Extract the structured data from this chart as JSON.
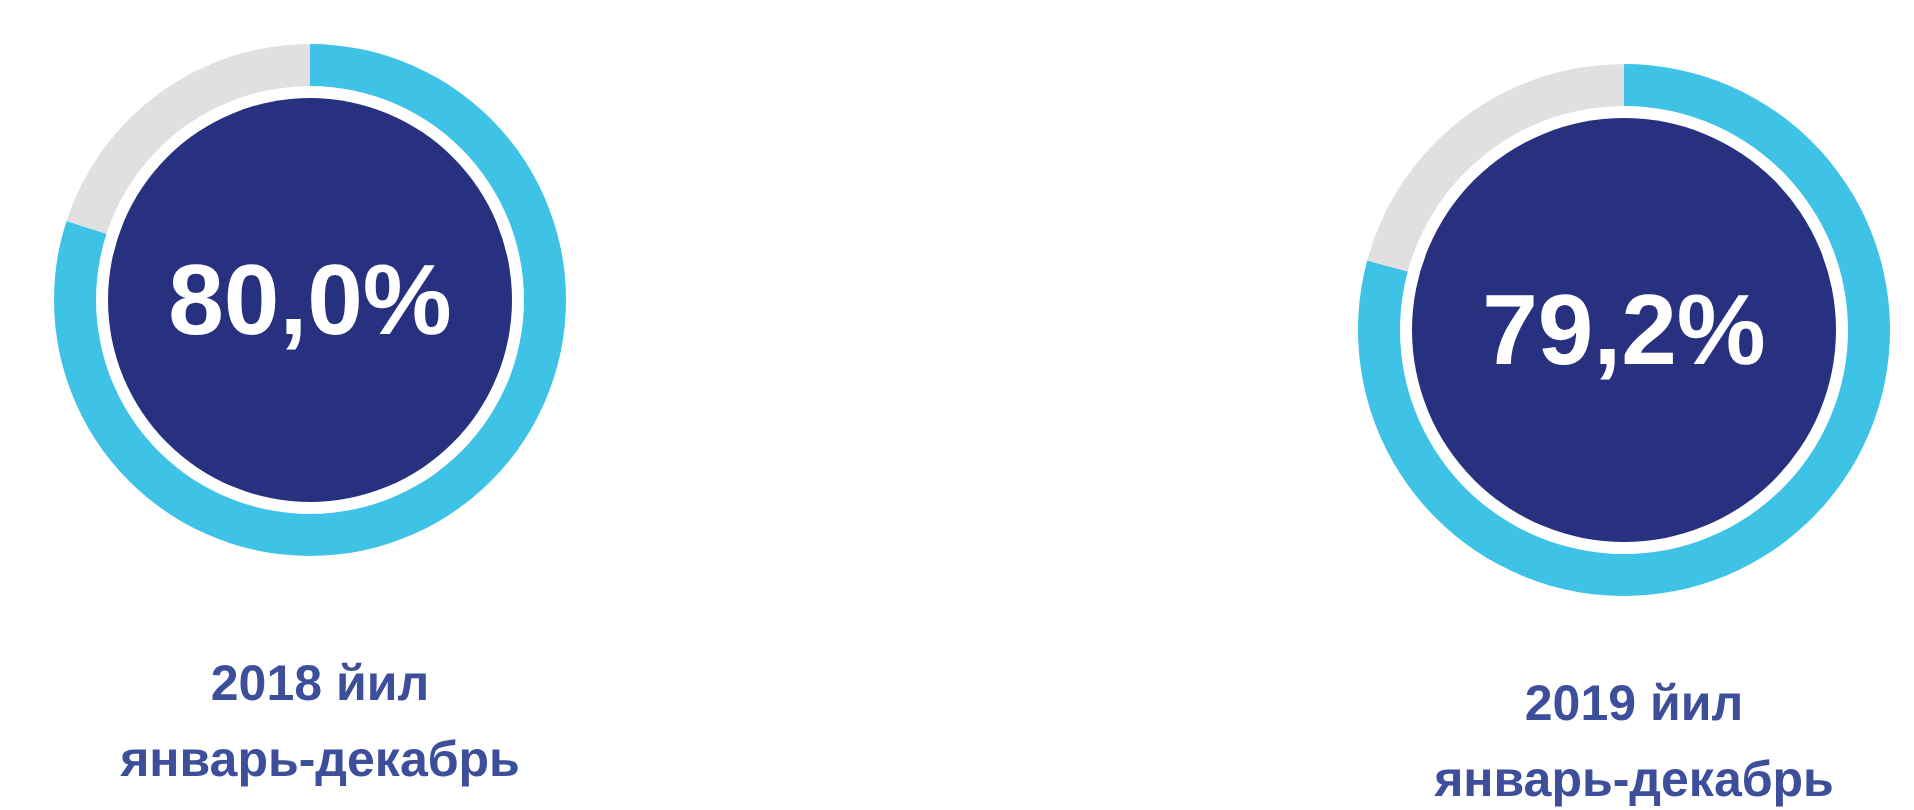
{
  "chart_data": [
    {
      "type": "donut",
      "title": "2018 йил\nянварь-декабрь",
      "categories": [
        null,
        null
      ],
      "values": [
        80.0,
        20.0
      ],
      "colors": [
        "#3ec3e6",
        "#e0e0e0"
      ],
      "annotations": [
        "80,0%"
      ]
    },
    {
      "type": "donut",
      "title": "2019 йил\nянварь-декабрь",
      "categories": [
        null,
        null
      ],
      "values": [
        79.2,
        20.8
      ],
      "colors": [
        "#3ec3e6",
        "#e0e0e0"
      ],
      "annotations": [
        "79,2%"
      ]
    }
  ]
}
